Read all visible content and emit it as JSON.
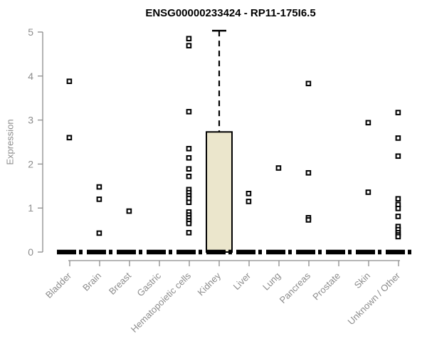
{
  "figure": {
    "title": "ENSG00000233424 - RP11-175I6.5",
    "y_axis_label": "Expression"
  },
  "colors": {
    "axis": "#8c8c8c",
    "tick_text": "#8c8c8c",
    "title_text": "#000000",
    "box_fill": "#ebe6cc",
    "box_stroke": "#000000",
    "point_stroke": "#000000",
    "background": "#ffffff"
  },
  "chart_data": {
    "type": "boxplot",
    "title": "ENSG00000233424 - RP11-175I6.5",
    "xlabel": "",
    "ylabel": "Expression",
    "ylim": [
      0,
      5.2
    ],
    "yticks": [
      0,
      1,
      2,
      3,
      4,
      5
    ],
    "grid": false,
    "legend": false,
    "categories": [
      "Bladder",
      "Brain",
      "Breast",
      "Gastric",
      "Hematopoietic cells",
      "Kidney",
      "Liver",
      "Lung",
      "Pancreas",
      "Prostate",
      "Skin",
      "Unknown / Other"
    ],
    "groups": [
      {
        "category": "Bladder",
        "median": 0,
        "q1": 0,
        "q3": 0,
        "whisker_low": 0,
        "whisker_high": 0,
        "points": [
          3.88,
          2.6
        ]
      },
      {
        "category": "Brain",
        "median": 0,
        "q1": 0,
        "q3": 0,
        "whisker_low": 0,
        "whisker_high": 0,
        "points": [
          1.48,
          1.2,
          0.43
        ]
      },
      {
        "category": "Breast",
        "median": 0,
        "q1": 0,
        "q3": 0,
        "whisker_low": 0,
        "whisker_high": 0,
        "points": [
          0.93
        ]
      },
      {
        "category": "Gastric",
        "median": 0,
        "q1": 0,
        "q3": 0,
        "whisker_low": 0,
        "whisker_high": 0,
        "points": []
      },
      {
        "category": "Hematopoietic cells",
        "median": 0,
        "q1": 0,
        "q3": 0,
        "whisker_low": 0,
        "whisker_high": 0,
        "points": [
          4.85,
          4.69,
          3.19,
          2.35,
          2.14,
          1.89,
          1.72,
          1.42,
          1.35,
          1.28,
          1.22,
          1.13,
          0.91,
          0.84,
          0.78,
          0.71,
          0.65,
          0.44
        ]
      },
      {
        "category": "Kidney",
        "median": 0,
        "q1": 0,
        "q3": 2.73,
        "whisker_low": 0,
        "whisker_high": 5.03,
        "points": []
      },
      {
        "category": "Liver",
        "median": 0,
        "q1": 0,
        "q3": 0,
        "whisker_low": 0,
        "whisker_high": 0,
        "points": [
          1.33,
          1.15
        ]
      },
      {
        "category": "Lung",
        "median": 0,
        "q1": 0,
        "q3": 0,
        "whisker_low": 0,
        "whisker_high": 0,
        "points": [
          1.91
        ]
      },
      {
        "category": "Pancreas",
        "median": 0,
        "q1": 0,
        "q3": 0,
        "whisker_low": 0,
        "whisker_high": 0,
        "points": [
          3.83,
          1.8,
          0.78,
          0.73
        ]
      },
      {
        "category": "Prostate",
        "median": 0,
        "q1": 0,
        "q3": 0,
        "whisker_low": 0,
        "whisker_high": 0,
        "points": []
      },
      {
        "category": "Skin",
        "median": 0,
        "q1": 0,
        "q3": 0,
        "whisker_low": 0,
        "whisker_high": 0,
        "points": [
          2.94,
          1.36
        ]
      },
      {
        "category": "Unknown / Other",
        "median": 0,
        "q1": 0,
        "q3": 0,
        "whisker_low": 0,
        "whisker_high": 0,
        "points": [
          3.17,
          2.59,
          2.18,
          1.21,
          1.08,
          0.99,
          0.81,
          0.58,
          0.51,
          0.44,
          0.39,
          0.35
        ]
      }
    ]
  }
}
